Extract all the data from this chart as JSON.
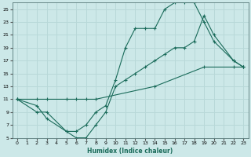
{
  "xlabel": "Humidex (Indice chaleur)",
  "ylabel": "",
  "bg_color": "#cce8e8",
  "grid_color": "#b8d8d8",
  "line_color": "#1a6b5a",
  "xlim": [
    -0.5,
    23.5
  ],
  "ylim": [
    5,
    26
  ],
  "xticks": [
    0,
    1,
    2,
    3,
    4,
    5,
    6,
    7,
    8,
    9,
    10,
    11,
    12,
    13,
    14,
    15,
    16,
    17,
    18,
    19,
    20,
    21,
    22,
    23
  ],
  "yticks": [
    5,
    7,
    9,
    11,
    13,
    15,
    17,
    19,
    21,
    23,
    25
  ],
  "line1_x": [
    0,
    2,
    3,
    5,
    6,
    7,
    8,
    9,
    10,
    11,
    12,
    13,
    14,
    15,
    16,
    17,
    18,
    19,
    20,
    22,
    23
  ],
  "line1_y": [
    11,
    9,
    9,
    6,
    6,
    7,
    9,
    10,
    14,
    19,
    22,
    22,
    22,
    25,
    26,
    26,
    26,
    23,
    20,
    17,
    16
  ],
  "line2_x": [
    0,
    2,
    3,
    5,
    6,
    7,
    8,
    14,
    19,
    22,
    23
  ],
  "line2_y": [
    11,
    11,
    11,
    11,
    11,
    11,
    11,
    13,
    16,
    16,
    16
  ],
  "line3_x": [
    0,
    2,
    3,
    5,
    6,
    7,
    8,
    9,
    10,
    11,
    12,
    13,
    14,
    15,
    16,
    17,
    18,
    19,
    20,
    22,
    23
  ],
  "line3_y": [
    11,
    10,
    8,
    6,
    5,
    5,
    7,
    9,
    13,
    14,
    15,
    16,
    17,
    18,
    19,
    19,
    20,
    24,
    21,
    17,
    16
  ]
}
